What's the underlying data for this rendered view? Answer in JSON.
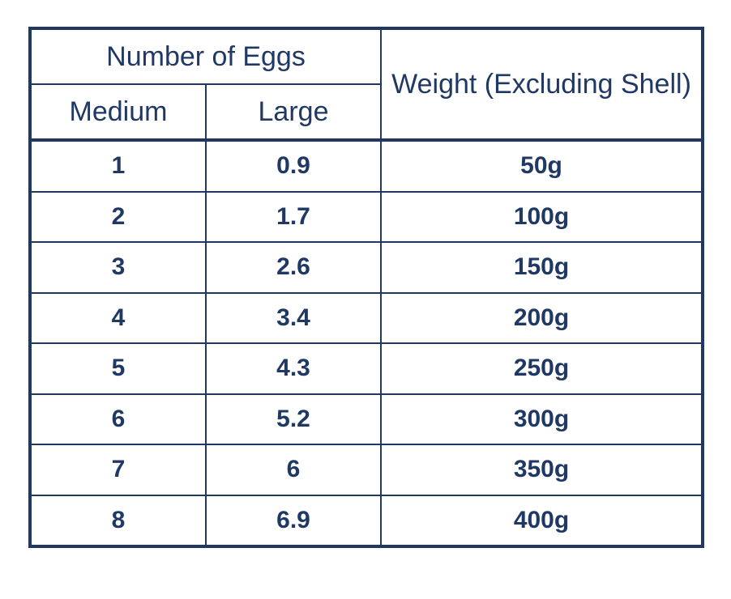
{
  "colors": {
    "text": "#203864",
    "border": "#203864",
    "background": "#ffffff"
  },
  "table": {
    "header": {
      "group_label": "Number of Eggs",
      "col_medium": "Medium",
      "col_large": "Large",
      "col_weight": "Weight (Excluding Shell)"
    },
    "rows": [
      {
        "medium": "1",
        "large": "0.9",
        "weight": "50g"
      },
      {
        "medium": "2",
        "large": "1.7",
        "weight": "100g"
      },
      {
        "medium": "3",
        "large": "2.6",
        "weight": "150g"
      },
      {
        "medium": "4",
        "large": "3.4",
        "weight": "200g"
      },
      {
        "medium": "5",
        "large": "4.3",
        "weight": "250g"
      },
      {
        "medium": "6",
        "large": "5.2",
        "weight": "300g"
      },
      {
        "medium": "7",
        "large": "6",
        "weight": "350g"
      },
      {
        "medium": "8",
        "large": "6.9",
        "weight": "400g"
      }
    ]
  },
  "chart_data": {
    "type": "table",
    "title": "",
    "column_groups": [
      {
        "label": "Number of Eggs",
        "columns": [
          "Medium",
          "Large"
        ]
      },
      {
        "label": "Weight (Excluding Shell)",
        "columns": [
          "Weight (Excluding Shell)"
        ]
      }
    ],
    "columns": [
      "Medium",
      "Large",
      "Weight (Excluding Shell)"
    ],
    "rows": [
      [
        1,
        0.9,
        "50g"
      ],
      [
        2,
        1.7,
        "100g"
      ],
      [
        3,
        2.6,
        "150g"
      ],
      [
        4,
        3.4,
        "200g"
      ],
      [
        5,
        4.3,
        "250g"
      ],
      [
        6,
        5.2,
        "300g"
      ],
      [
        7,
        6,
        "350g"
      ],
      [
        8,
        6.9,
        "400g"
      ]
    ]
  }
}
